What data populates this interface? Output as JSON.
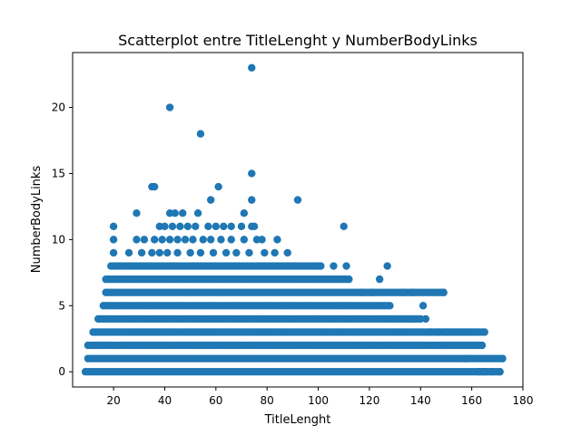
{
  "chart_data": {
    "type": "scatter",
    "title": "Scatterplot entre TitleLenght y NumberBodyLinks",
    "xlabel": "TitleLenght",
    "ylabel": "NumberBodyLinks",
    "xlim": [
      4,
      180
    ],
    "ylim": [
      -1.15,
      24.15
    ],
    "xticks": [
      20,
      40,
      60,
      80,
      100,
      120,
      140,
      160,
      180
    ],
    "yticks": [
      0,
      5,
      10,
      15,
      20
    ],
    "grid": false,
    "marker_color": "#1f77b4",
    "series": [
      {
        "bands": [
          {
            "y": 0,
            "x_min": 9,
            "x_max": 171
          },
          {
            "y": 1,
            "x_min": 10,
            "x_max": 172
          },
          {
            "y": 2,
            "x_min": 10,
            "x_max": 164
          },
          {
            "y": 3,
            "x_min": 12,
            "x_max": 164
          },
          {
            "y": 4,
            "x_min": 14,
            "x_max": 140
          },
          {
            "y": 5,
            "x_min": 16,
            "x_max": 128
          },
          {
            "y": 6,
            "x_min": 17,
            "x_max": 149
          },
          {
            "y": 7,
            "x_min": 17,
            "x_max": 112
          },
          {
            "y": 8,
            "x_min": 19,
            "x_max": 100
          }
        ],
        "points": [
          [
            74,
            23
          ],
          [
            42,
            20
          ],
          [
            54,
            18
          ],
          [
            35,
            14
          ],
          [
            36,
            14
          ],
          [
            61,
            14
          ],
          [
            74,
            15
          ],
          [
            58,
            13
          ],
          [
            74,
            13
          ],
          [
            92,
            13
          ],
          [
            29,
            12
          ],
          [
            42,
            12
          ],
          [
            44,
            12
          ],
          [
            47,
            12
          ],
          [
            53,
            12
          ],
          [
            71,
            12
          ],
          [
            20,
            11
          ],
          [
            38,
            11
          ],
          [
            40,
            11
          ],
          [
            43,
            11
          ],
          [
            46,
            11
          ],
          [
            49,
            11
          ],
          [
            52,
            11
          ],
          [
            57,
            11
          ],
          [
            60,
            11
          ],
          [
            63,
            11
          ],
          [
            66,
            11
          ],
          [
            70,
            11
          ],
          [
            74,
            11
          ],
          [
            75,
            11
          ],
          [
            110,
            11
          ],
          [
            20,
            10
          ],
          [
            29,
            10
          ],
          [
            32,
            10
          ],
          [
            36,
            10
          ],
          [
            39,
            10
          ],
          [
            42,
            10
          ],
          [
            45,
            10
          ],
          [
            48,
            10
          ],
          [
            51,
            10
          ],
          [
            55,
            10
          ],
          [
            58,
            10
          ],
          [
            62,
            10
          ],
          [
            66,
            10
          ],
          [
            71,
            10
          ],
          [
            76,
            10
          ],
          [
            78,
            10
          ],
          [
            84,
            10
          ],
          [
            20,
            9
          ],
          [
            26,
            9
          ],
          [
            31,
            9
          ],
          [
            35,
            9
          ],
          [
            38,
            9
          ],
          [
            41,
            9
          ],
          [
            45,
            9
          ],
          [
            50,
            9
          ],
          [
            54,
            9
          ],
          [
            59,
            9
          ],
          [
            64,
            9
          ],
          [
            68,
            9
          ],
          [
            73,
            9
          ],
          [
            79,
            9
          ],
          [
            83,
            9
          ],
          [
            88,
            9
          ],
          [
            100,
            8
          ],
          [
            101,
            8
          ],
          [
            106,
            8
          ],
          [
            111,
            8
          ],
          [
            127,
            8
          ],
          [
            124,
            7
          ],
          [
            117,
            6
          ],
          [
            121,
            6
          ],
          [
            133,
            6
          ],
          [
            137,
            6
          ],
          [
            149,
            6
          ],
          [
            132,
            4
          ],
          [
            136,
            4
          ],
          [
            142,
            4
          ],
          [
            141,
            5
          ],
          [
            144,
            3
          ],
          [
            147,
            3
          ],
          [
            150,
            3
          ],
          [
            165,
            3
          ],
          [
            148,
            2
          ],
          [
            150,
            2
          ],
          [
            164,
            2
          ],
          [
            157,
            1
          ],
          [
            158,
            1
          ],
          [
            163,
            0
          ],
          [
            165,
            0
          ],
          [
            168,
            0
          ],
          [
            171,
            0
          ],
          [
            172,
            1
          ]
        ]
      }
    ]
  }
}
